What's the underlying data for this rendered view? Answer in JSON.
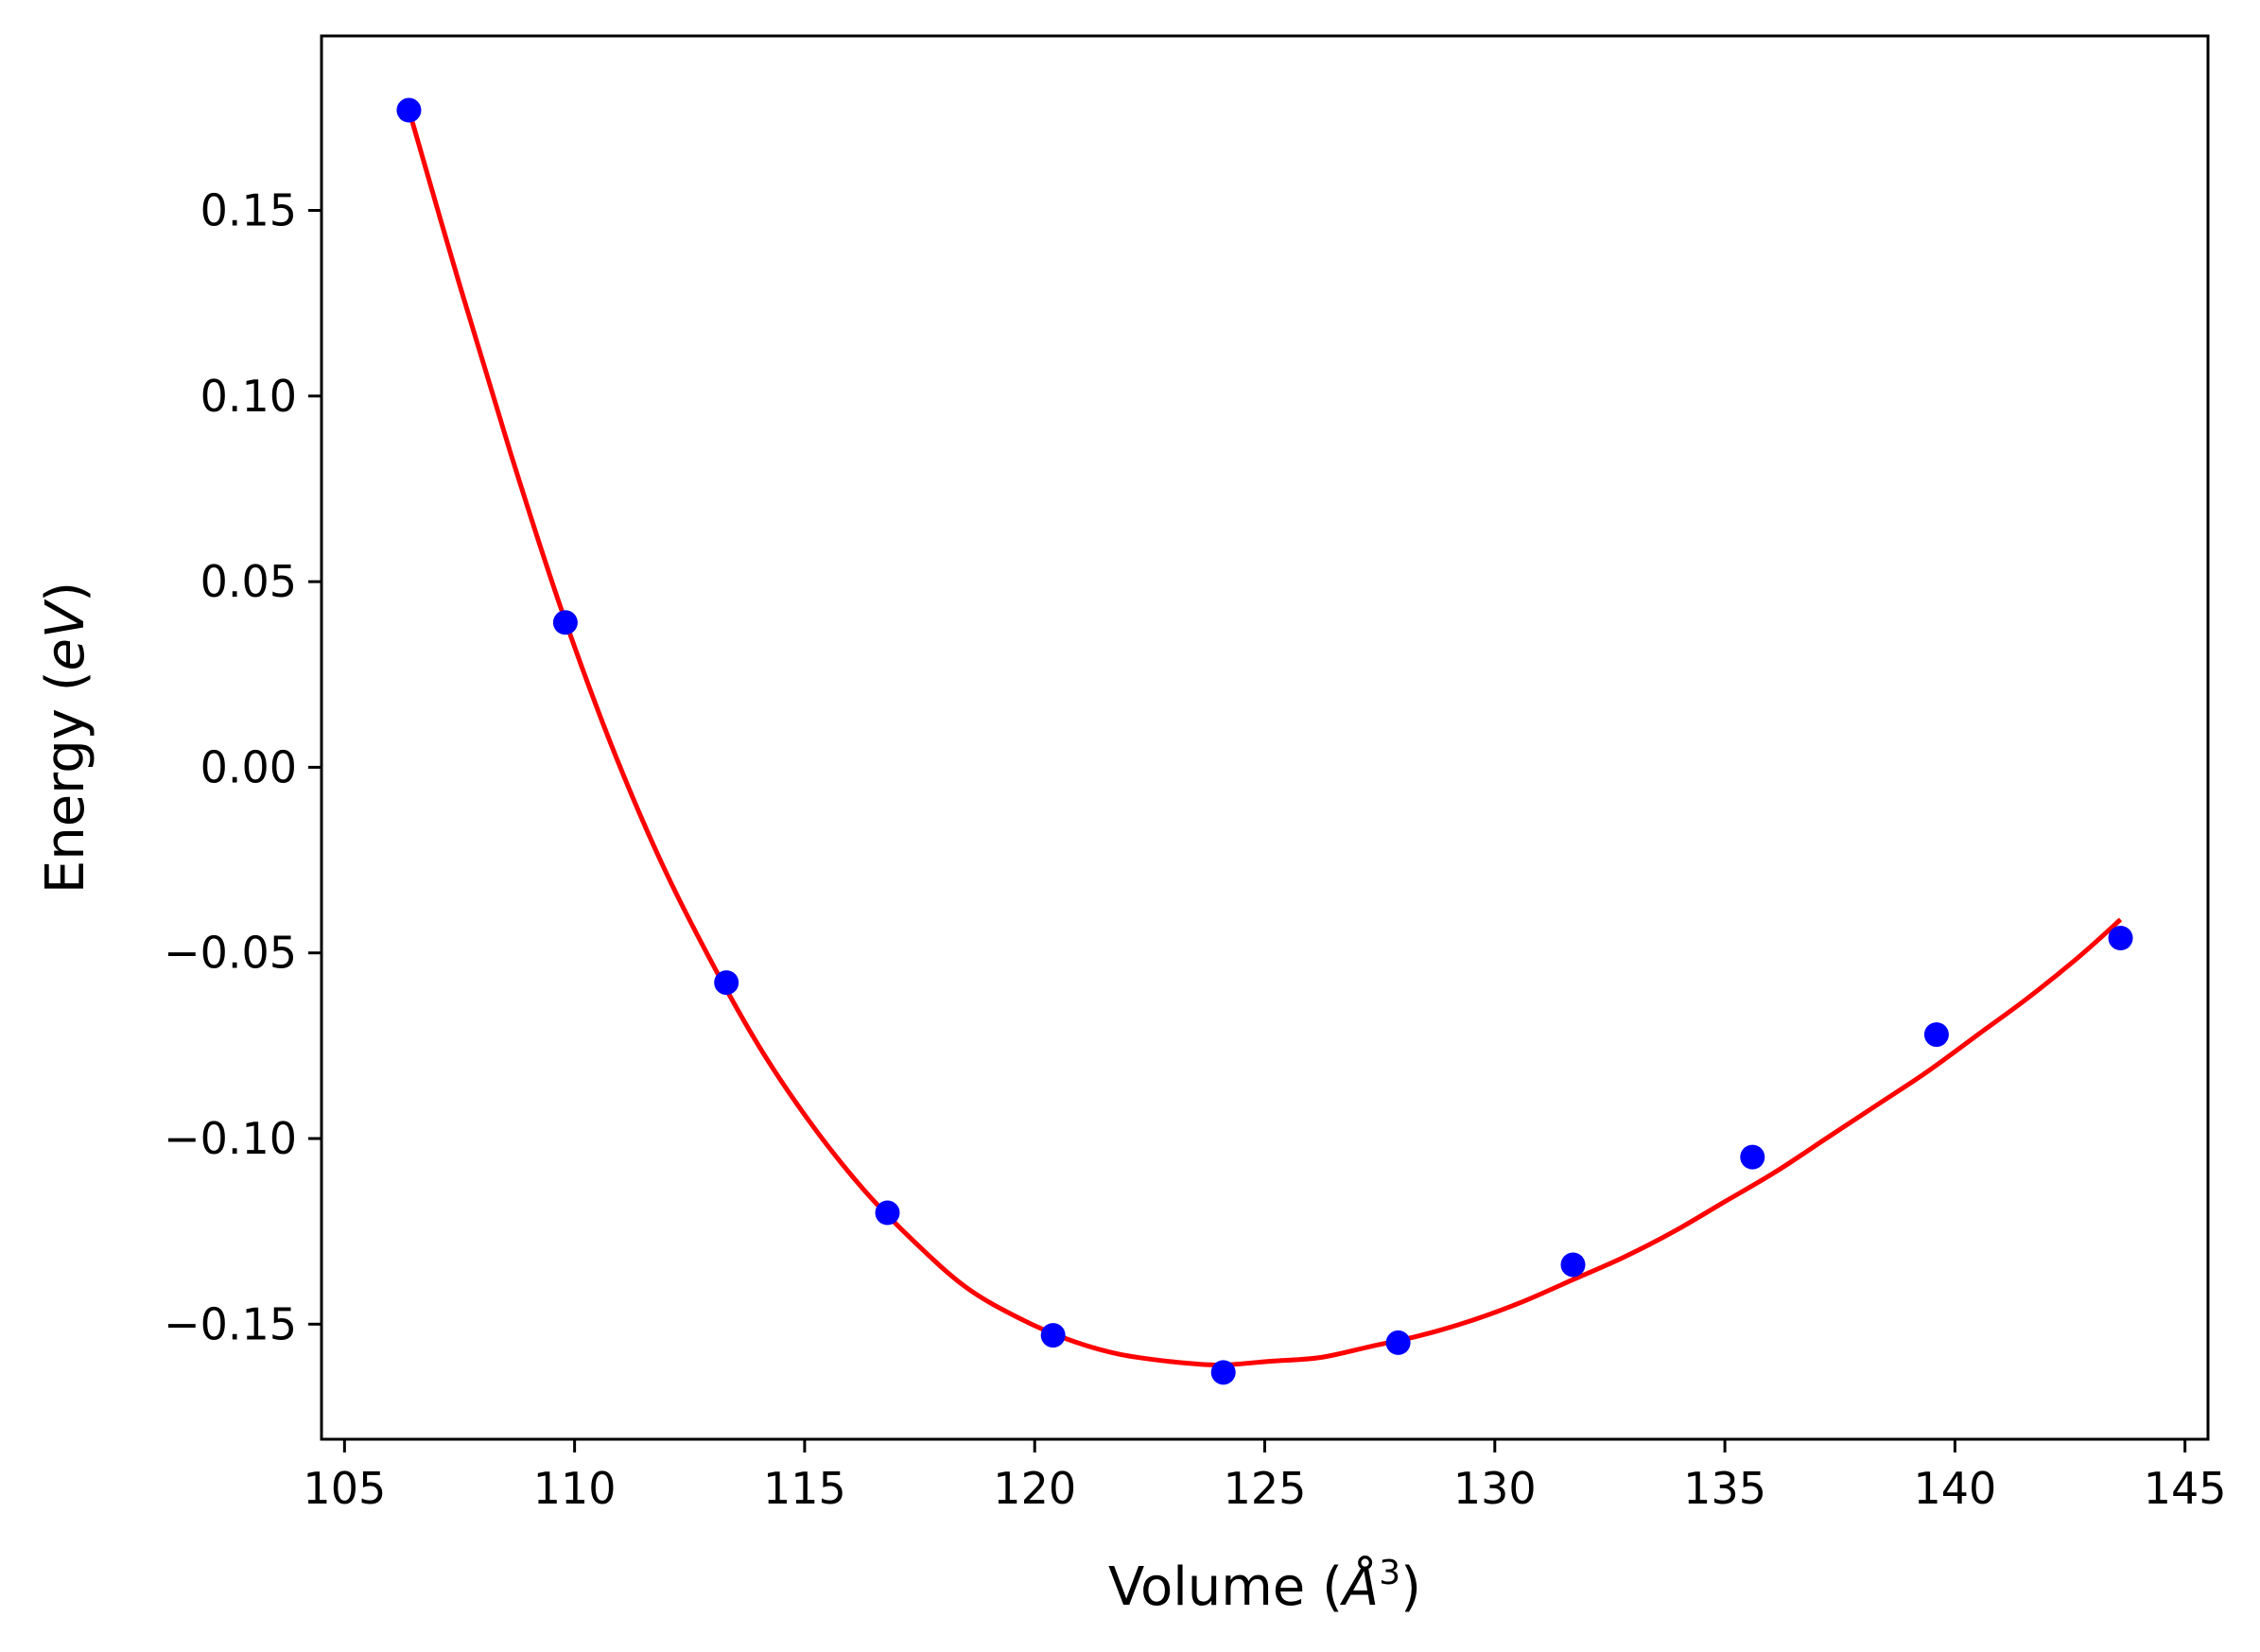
{
  "chart_data": {
    "type": "scatter",
    "xlabel": "Volume (Å³)",
    "xlabel_parts": {
      "prefix": "Volume (",
      "symbol": "Å",
      "exponent": "3",
      "suffix": ")"
    },
    "ylabel": "Energy (eV)",
    "ylabel_parts": {
      "prefix": "Energy (",
      "unit": "eV",
      "suffix": ")"
    },
    "xlim": [
      104.5,
      145.5
    ],
    "ylim": [
      -0.181,
      0.197
    ],
    "xticks": [
      105,
      110,
      115,
      120,
      125,
      130,
      135,
      140,
      145
    ],
    "xtick_labels": [
      "105",
      "110",
      "115",
      "120",
      "125",
      "130",
      "135",
      "140",
      "145"
    ],
    "yticks": [
      0.15,
      0.1,
      0.05,
      0.0,
      -0.05,
      -0.1,
      -0.15
    ],
    "ytick_labels": [
      "0.15",
      "0.10",
      "0.05",
      "0.00",
      "−0.05",
      "−0.10",
      "−0.15"
    ],
    "grid": false,
    "legend": "none",
    "series": [
      {
        "type": "scatter",
        "color": "#0000ff",
        "x": [
          106.4,
          109.8,
          113.3,
          116.8,
          120.4,
          124.1,
          127.9,
          131.7,
          135.6,
          139.6,
          143.6
        ],
        "y": [
          0.177,
          0.039,
          -0.058,
          -0.12,
          -0.153,
          -0.163,
          -0.155,
          -0.134,
          -0.105,
          -0.072,
          -0.046
        ]
      },
      {
        "type": "line",
        "color": "#ff0000",
        "x": [
          106.4,
          107.5,
          108.6,
          109.7,
          110.8,
          111.9,
          113.0,
          114.1,
          115.2,
          116.3,
          117.4,
          118.5,
          119.6,
          120.7,
          121.8,
          122.9,
          124.0,
          125.1,
          126.2,
          127.3,
          128.4,
          129.5,
          130.6,
          131.7,
          132.8,
          133.9,
          135.0,
          136.1,
          137.2,
          138.3,
          139.4,
          140.5,
          141.6,
          142.7,
          143.6
        ],
        "y": [
          0.177,
          0.13,
          0.085,
          0.043,
          0.006,
          -0.026,
          -0.053,
          -0.077,
          -0.097,
          -0.114,
          -0.128,
          -0.14,
          -0.148,
          -0.154,
          -0.158,
          -0.16,
          -0.161,
          -0.16,
          -0.159,
          -0.156,
          -0.153,
          -0.149,
          -0.144,
          -0.138,
          -0.132,
          -0.125,
          -0.117,
          -0.109,
          -0.1,
          -0.091,
          -0.082,
          -0.072,
          -0.062,
          -0.051,
          -0.041
        ]
      }
    ]
  }
}
